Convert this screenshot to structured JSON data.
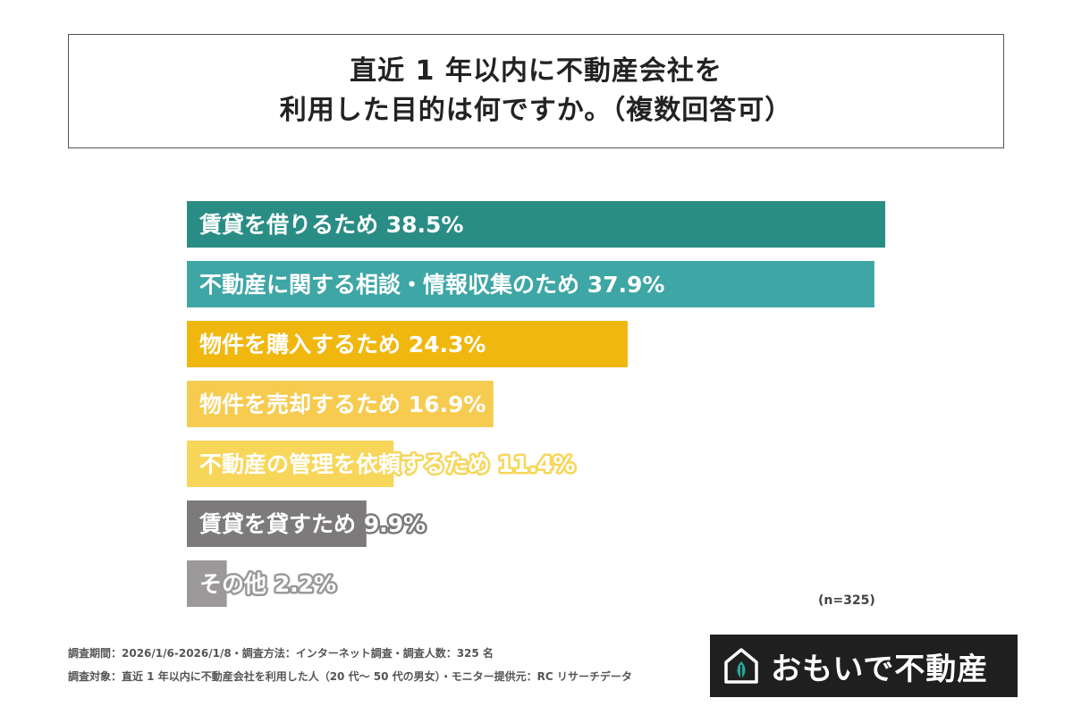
{
  "title": {
    "line1": "直近 1 年以内に不動産会社を",
    "line2": "利用した目的は何ですか。（複数回答可）"
  },
  "chart_data": {
    "type": "bar",
    "orientation": "horizontal",
    "unit": "%",
    "categories": [
      "賃貸を借りるため",
      "不動産に関する相談・情報収集のため",
      "物件を購入するため",
      "物件を売却するため",
      "不動産の管理を依頼するため",
      "賃貸を貸すため",
      "その他"
    ],
    "values": [
      38.5,
      37.9,
      24.3,
      16.9,
      11.4,
      9.9,
      2.2
    ],
    "colors": [
      "#2a8d85",
      "#3ea6a5",
      "#f0b70f",
      "#f6cb50",
      "#f7d65a",
      "#7d7a7c",
      "#9c999b"
    ],
    "xlim": [
      0,
      40
    ]
  },
  "sample_size": "(n=325)",
  "footnotes": {
    "period": "調査期間：2026/1/6-2026/1/8・調査方法：インターネット調査・調査人数：325 名",
    "target": "調査対象：直近 1 年以内に不動産会社を利用した人（20 代〜 50 代の男女）・モニター提供元：RC リサーチデータ"
  },
  "logo": {
    "text": "おもいで不動産",
    "icon": "house-leaf-icon",
    "bg_color": "#1f1f1f"
  }
}
